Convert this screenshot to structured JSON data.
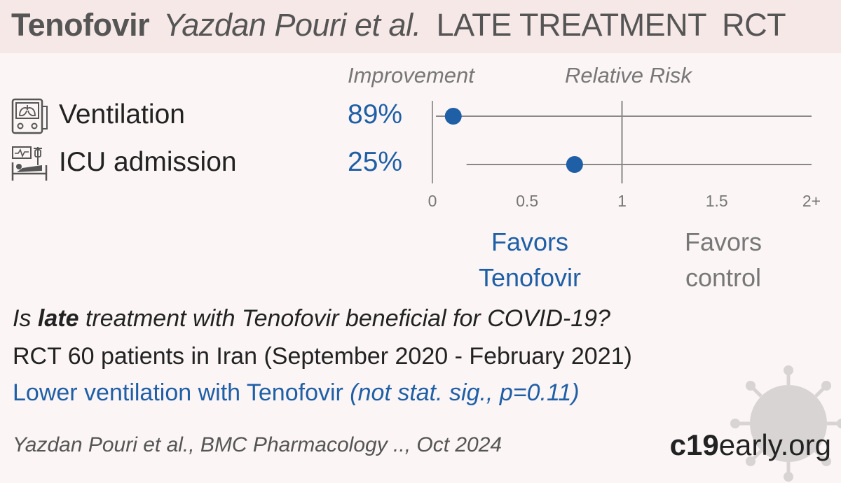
{
  "header": {
    "drug": "Tenofovir",
    "authors": "Yazdan Pouri et al.",
    "stage": "LATE TREATMENT",
    "design": "RCT"
  },
  "columns": {
    "improvement": "Improvement",
    "relative_risk": "Relative Risk"
  },
  "outcomes": [
    {
      "name": "Ventilation",
      "improvement": "89%",
      "icon": "ventilator-icon"
    },
    {
      "name": "ICU admission",
      "improvement": "25%",
      "icon": "icu-bed-icon"
    }
  ],
  "chart_data": {
    "type": "scatter",
    "categories": [
      "Ventilation",
      "ICU admission"
    ],
    "series": [
      {
        "points": [
          {
            "outcome": "Ventilation",
            "rr": 0.11,
            "ci_low": 0.0,
            "ci_high": 2.0
          },
          {
            "outcome": "ICU admission",
            "rr": 0.75,
            "ci_low": 0.18,
            "ci_high": 2.0
          }
        ]
      }
    ],
    "x_ticks": [
      "0",
      "0.5",
      "1",
      "1.5",
      "2+"
    ],
    "xlim": [
      0,
      2
    ],
    "reference_line": 1,
    "xlabel": "",
    "ylabel": "",
    "colors": {
      "point": "#1f5fa6",
      "line": "#888888",
      "axis": "#999999"
    }
  },
  "favors": {
    "treatment_line1": "Favors",
    "treatment_line2": "Tenofovir",
    "control_line1": "Favors",
    "control_line2": "control"
  },
  "summary": {
    "question_pre": "Is ",
    "question_bold": "late",
    "question_post": " treatment with Tenofovir beneficial for COVID-19?",
    "details": "RCT 60 patients in Iran (September 2020 - February 2021)",
    "conclusion_main": "Lower ventilation with Tenofovir ",
    "conclusion_note": "(not stat. sig., p=0.11)"
  },
  "footer": {
    "citation": "Yazdan Pouri et al., BMC Pharmacology .., Oct 2024",
    "brand_bold": "c19",
    "brand_rest": "early.org"
  },
  "colors": {
    "accent": "#1f5fa6",
    "header_bg": "#f6e8e6",
    "page_bg": "#fbf5f5"
  }
}
